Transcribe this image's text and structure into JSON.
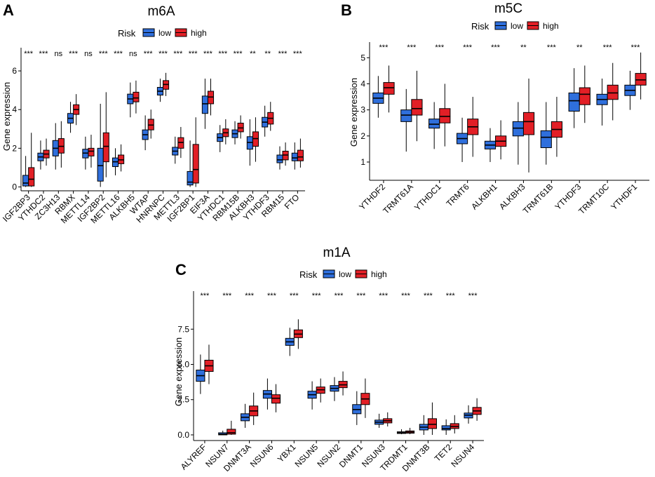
{
  "legend": {
    "title": "Risk",
    "low_label": "low",
    "high_label": "high"
  },
  "colors": {
    "low": "#2f6fdc",
    "high": "#e21f26"
  },
  "chart_data": [
    {
      "type": "boxplot",
      "panel": "A",
      "title": "m6A",
      "ylabel": "Gene expression",
      "ylim": [
        -0.2,
        7.2
      ],
      "yticks": [
        0,
        2,
        4,
        6
      ],
      "categories": [
        "IGF2BP3",
        "YTHDC2",
        "ZC3H13",
        "RBMX",
        "METTL14",
        "IGF2BP2",
        "METTL16",
        "ALKBH5",
        "WTAP",
        "HNRNPC",
        "METTL3",
        "IGF2BP1",
        "EIF3A",
        "YTHDC1",
        "RBM15B",
        "ALKBH3",
        "YTHDF3",
        "RBM15",
        "FTO"
      ],
      "significance": [
        "***",
        "***",
        "ns",
        "***",
        "ns",
        "***",
        "***",
        "ns",
        "***",
        "***",
        "***",
        "***",
        "***",
        "***",
        "***",
        "**",
        "**",
        "***",
        "***"
      ],
      "series": [
        {
          "name": "low",
          "stats": [
            [
              0.0,
              0.05,
              0.2,
              0.6,
              1.6
            ],
            [
              0.9,
              1.35,
              1.55,
              1.75,
              2.4
            ],
            [
              0.9,
              1.6,
              2.0,
              2.4,
              3.3
            ],
            [
              2.8,
              3.3,
              3.55,
              3.8,
              4.4
            ],
            [
              0.9,
              1.5,
              1.75,
              1.95,
              2.6
            ],
            [
              0.0,
              0.3,
              1.1,
              2.0,
              4.3
            ],
            [
              0.6,
              1.05,
              1.3,
              1.5,
              2.0
            ],
            [
              3.6,
              4.3,
              4.55,
              4.8,
              5.4
            ],
            [
              1.9,
              2.45,
              2.7,
              2.95,
              3.7
            ],
            [
              4.4,
              4.75,
              4.95,
              5.15,
              5.6
            ],
            [
              1.2,
              1.65,
              1.85,
              2.05,
              2.6
            ],
            [
              0.0,
              0.1,
              0.25,
              0.8,
              2.4
            ],
            [
              3.0,
              3.8,
              4.3,
              4.7,
              5.6
            ],
            [
              1.8,
              2.35,
              2.55,
              2.75,
              3.2
            ],
            [
              2.2,
              2.55,
              2.75,
              2.95,
              3.4
            ],
            [
              1.1,
              1.95,
              2.3,
              2.6,
              3.5
            ],
            [
              2.6,
              3.1,
              3.35,
              3.6,
              4.2
            ],
            [
              0.9,
              1.25,
              1.4,
              1.65,
              2.1
            ],
            [
              0.9,
              1.35,
              1.5,
              1.75,
              2.3
            ]
          ]
        },
        {
          "name": "high",
          "stats": [
            [
              0.0,
              0.05,
              0.4,
              1.0,
              2.8
            ],
            [
              1.1,
              1.5,
              1.7,
              1.9,
              2.5
            ],
            [
              1.0,
              1.75,
              2.1,
              2.5,
              3.4
            ],
            [
              3.2,
              3.75,
              4.0,
              4.25,
              4.8
            ],
            [
              1.0,
              1.6,
              1.85,
              2.0,
              2.7
            ],
            [
              0.5,
              1.3,
              2.1,
              2.8,
              4.9
            ],
            [
              0.8,
              1.2,
              1.4,
              1.65,
              2.2
            ],
            [
              3.8,
              4.4,
              4.6,
              4.9,
              5.5
            ],
            [
              2.5,
              2.95,
              3.2,
              3.5,
              4.0
            ],
            [
              4.7,
              5.05,
              5.3,
              5.5,
              5.9
            ],
            [
              1.5,
              2.0,
              2.3,
              2.55,
              3.1
            ],
            [
              0.0,
              0.2,
              0.9,
              2.2,
              3.6
            ],
            [
              3.7,
              4.3,
              4.65,
              4.95,
              5.6
            ],
            [
              2.2,
              2.6,
              2.8,
              3.0,
              3.5
            ],
            [
              2.5,
              2.85,
              3.05,
              3.3,
              3.7
            ],
            [
              1.3,
              2.1,
              2.5,
              2.85,
              3.6
            ],
            [
              2.9,
              3.25,
              3.55,
              3.85,
              4.4
            ],
            [
              1.1,
              1.4,
              1.65,
              1.85,
              2.3
            ],
            [
              1.0,
              1.35,
              1.55,
              1.9,
              2.5
            ]
          ]
        }
      ]
    },
    {
      "type": "boxplot",
      "panel": "B",
      "title": "m5C",
      "ylabel": "Gene expression",
      "ylim": [
        0.3,
        5.6
      ],
      "yticks": [
        1,
        2,
        3,
        4,
        5
      ],
      "categories": [
        "YTHDF2",
        "TRMT61A",
        "YTHDC1",
        "TRMT6",
        "ALKBH1",
        "ALKBH3",
        "TRMT61B",
        "YTHDF3",
        "TRMT10C",
        "YTHDF1"
      ],
      "significance": [
        "***",
        "***",
        "***",
        "***",
        "***",
        "**",
        "***",
        "**",
        "***",
        "***"
      ],
      "series": [
        {
          "name": "low",
          "stats": [
            [
              2.7,
              3.25,
              3.45,
              3.65,
              4.3
            ],
            [
              1.4,
              2.55,
              2.8,
              3.0,
              3.8
            ],
            [
              1.5,
              2.3,
              2.45,
              2.65,
              3.3
            ],
            [
              1.0,
              1.7,
              1.9,
              2.1,
              2.7
            ],
            [
              1.0,
              1.5,
              1.65,
              1.8,
              2.3
            ],
            [
              0.9,
              2.0,
              2.3,
              2.55,
              3.3
            ],
            [
              0.9,
              1.55,
              1.95,
              2.2,
              3.3
            ],
            [
              2.3,
              2.95,
              3.35,
              3.65,
              4.6
            ],
            [
              2.4,
              3.2,
              3.4,
              3.6,
              4.2
            ],
            [
              3.0,
              3.55,
              3.75,
              3.95,
              4.5
            ]
          ]
        },
        {
          "name": "high",
          "stats": [
            [
              2.9,
              3.6,
              3.85,
              4.05,
              4.7
            ],
            [
              1.8,
              2.8,
              3.05,
              3.4,
              4.5
            ],
            [
              1.6,
              2.5,
              2.75,
              3.05,
              4.0
            ],
            [
              1.2,
              2.05,
              2.35,
              2.65,
              3.5
            ],
            [
              1.1,
              1.6,
              1.8,
              2.0,
              2.6
            ],
            [
              0.6,
              2.05,
              2.55,
              2.9,
              4.2
            ],
            [
              1.2,
              1.95,
              2.25,
              2.55,
              3.5
            ],
            [
              2.5,
              3.2,
              3.6,
              3.85,
              4.7
            ],
            [
              2.6,
              3.4,
              3.65,
              3.95,
              4.8
            ],
            [
              3.4,
              3.95,
              4.15,
              4.4,
              5.2
            ]
          ]
        }
      ]
    },
    {
      "type": "boxplot",
      "panel": "C",
      "title": "m1A",
      "ylabel": "Gene expression",
      "ylim": [
        -0.4,
        10.2
      ],
      "yticks": [
        0.0,
        2.5,
        5.0,
        7.5
      ],
      "categories": [
        "ALYREF",
        "NSUN7",
        "DNMT3A",
        "NSUN6",
        "YBX1",
        "NSUN5",
        "NSUN2",
        "DNMT1",
        "NSUN3",
        "TRDMT1",
        "DNMT3B",
        "TET2",
        "NSUN4"
      ],
      "significance": [
        "***",
        "***",
        "***",
        "***",
        "***",
        "***",
        "***",
        "***",
        "***",
        "***",
        "***",
        "***",
        "***"
      ],
      "series": [
        {
          "name": "low",
          "stats": [
            [
              2.9,
              3.8,
              4.2,
              4.6,
              5.7
            ],
            [
              0.0,
              0.0,
              0.05,
              0.15,
              0.3
            ],
            [
              0.5,
              1.0,
              1.25,
              1.5,
              2.2
            ],
            [
              1.8,
              2.6,
              2.9,
              3.15,
              4.0
            ],
            [
              5.6,
              6.35,
              6.6,
              6.85,
              7.6
            ],
            [
              1.8,
              2.6,
              2.85,
              3.1,
              3.8
            ],
            [
              2.4,
              3.1,
              3.3,
              3.5,
              4.1
            ],
            [
              0.7,
              1.5,
              1.8,
              2.15,
              3.1
            ],
            [
              0.5,
              0.75,
              0.9,
              1.05,
              1.5
            ],
            [
              0.05,
              0.1,
              0.15,
              0.22,
              0.4
            ],
            [
              0.0,
              0.35,
              0.55,
              0.75,
              1.4
            ],
            [
              0.0,
              0.35,
              0.45,
              0.65,
              1.1
            ],
            [
              0.8,
              1.2,
              1.4,
              1.55,
              2.1
            ]
          ]
        },
        {
          "name": "high",
          "stats": [
            [
              3.6,
              4.5,
              4.9,
              5.3,
              6.4
            ],
            [
              0.0,
              0.05,
              0.15,
              0.4,
              1.0
            ],
            [
              0.7,
              1.35,
              1.7,
              2.05,
              3.0
            ],
            [
              1.6,
              2.25,
              2.6,
              2.85,
              3.6
            ],
            [
              6.1,
              6.9,
              7.15,
              7.45,
              8.2
            ],
            [
              2.3,
              2.95,
              3.2,
              3.4,
              4.0
            ],
            [
              2.8,
              3.35,
              3.55,
              3.8,
              4.5
            ],
            [
              1.2,
              2.15,
              2.55,
              2.95,
              4.0
            ],
            [
              0.6,
              0.85,
              1.0,
              1.15,
              1.6
            ],
            [
              0.05,
              0.12,
              0.2,
              0.28,
              0.5
            ],
            [
              0.0,
              0.45,
              0.75,
              1.15,
              2.3
            ],
            [
              0.1,
              0.45,
              0.6,
              0.8,
              1.4
            ],
            [
              1.0,
              1.45,
              1.7,
              1.95,
              2.6
            ]
          ]
        }
      ]
    }
  ]
}
